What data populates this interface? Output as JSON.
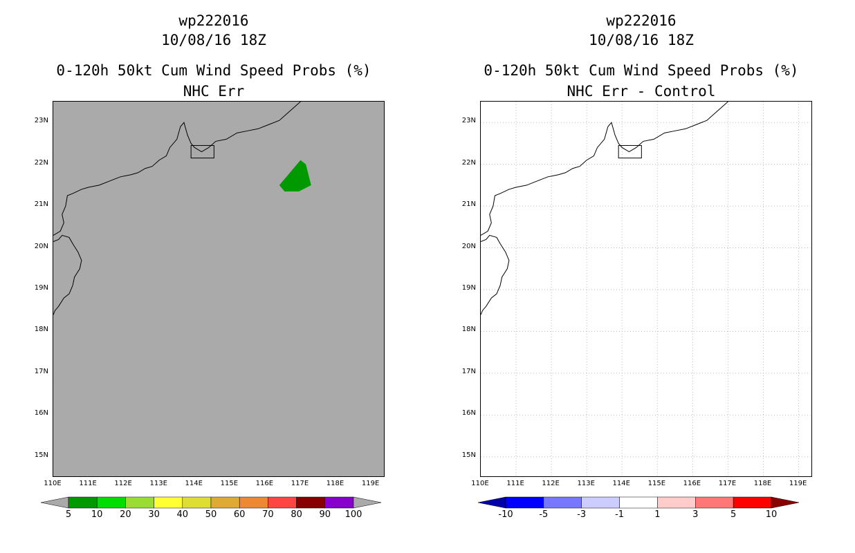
{
  "left": {
    "title_line1": "wp222016",
    "title_line2": "10/08/16 18Z",
    "title_line3": "0-120h 50kt Cum Wind Speed Probs (%)",
    "title_line4": "NHC Err",
    "background_color": "#aaaaaa",
    "prob_area_color": "#009900",
    "colorbar": {
      "labels": [
        "5",
        "10",
        "20",
        "30",
        "40",
        "50",
        "60",
        "70",
        "80",
        "90",
        "100"
      ],
      "colors": [
        "#009900",
        "#00dd00",
        "#99dd33",
        "#ffff33",
        "#dddd33",
        "#ddaa33",
        "#ee8833",
        "#ff4444",
        "#880000",
        "#8800cc"
      ],
      "end_colors": [
        "#aaaaaa",
        "#aaaaaa"
      ]
    }
  },
  "right": {
    "title_line1": "wp222016",
    "title_line2": "10/08/16 18Z",
    "title_line3": "0-120h 50kt Cum Wind Speed Probs (%)",
    "title_line4": "NHC Err - Control",
    "background_color": "#ffffff",
    "colorbar": {
      "labels": [
        "-10",
        "-5",
        "-3",
        "-1",
        "1",
        "3",
        "5",
        "10"
      ],
      "colors": [
        "#0000ff",
        "#7777ff",
        "#ccccff",
        "#ffffff",
        "#ffcccc",
        "#ff7777",
        "#ff0000"
      ],
      "end_colors": [
        "#0000aa",
        "#880000"
      ]
    }
  },
  "lat_labels": [
    "15N",
    "16N",
    "17N",
    "18N",
    "19N",
    "20N",
    "21N",
    "22N",
    "23N"
  ],
  "lon_labels": [
    "110E",
    "111E",
    "112E",
    "113E",
    "114E",
    "115E",
    "116E",
    "117E",
    "118E",
    "119E"
  ]
}
